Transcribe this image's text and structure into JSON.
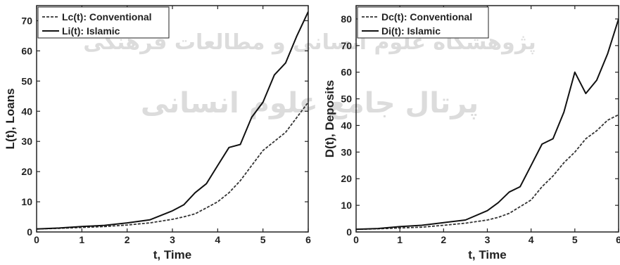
{
  "watermark": {
    "line1": "پژوهشگاه علوم انسانی و مطالعات فرهنگی",
    "line2": "پرتال جامع علوم انسانی"
  },
  "chart_data": [
    {
      "type": "line",
      "title": "",
      "xlabel": "t, Time",
      "ylabel": "L(t), Loans",
      "xlim": [
        0,
        6
      ],
      "ylim": [
        0,
        75
      ],
      "xticks": [
        0,
        1,
        2,
        3,
        4,
        5,
        6
      ],
      "yticks": [
        0,
        10,
        20,
        30,
        40,
        50,
        60,
        70
      ],
      "grid": false,
      "legend_position": "top-left",
      "x": [
        0,
        0.5,
        1,
        1.5,
        2,
        2.5,
        3,
        3.25,
        3.5,
        3.75,
        4,
        4.25,
        4.5,
        4.75,
        5,
        5.25,
        5.5,
        5.75,
        6
      ],
      "series": [
        {
          "name": "Lc(t): Conventional",
          "style": "dashed",
          "color": "#333333",
          "values": [
            1,
            1.2,
            1.5,
            1.8,
            2.3,
            3,
            4.2,
            5,
            6,
            8,
            10,
            13,
            17,
            22,
            27,
            30,
            33,
            38,
            43
          ]
        },
        {
          "name": "Li(t): Islamic",
          "style": "solid",
          "color": "#111111",
          "values": [
            1,
            1.3,
            1.8,
            2.2,
            3,
            4,
            7,
            9,
            13,
            16,
            22,
            28,
            29,
            38,
            43,
            52,
            56,
            65,
            73
          ]
        }
      ]
    },
    {
      "type": "line",
      "title": "",
      "xlabel": "t, Time",
      "ylabel": "D(t), Deposits",
      "xlim": [
        0,
        6
      ],
      "ylim": [
        0,
        85
      ],
      "xticks": [
        0,
        1,
        2,
        3,
        4,
        5,
        6
      ],
      "yticks": [
        0,
        10,
        20,
        30,
        40,
        50,
        60,
        70,
        80
      ],
      "grid": false,
      "legend_position": "top-left",
      "x": [
        0,
        0.5,
        1,
        1.5,
        2,
        2.5,
        3,
        3.25,
        3.5,
        3.75,
        4,
        4.25,
        4.5,
        4.75,
        5,
        5.25,
        5.5,
        5.75,
        6
      ],
      "series": [
        {
          "name": "Dc(t): Conventional",
          "style": "dashed",
          "color": "#333333",
          "values": [
            1,
            1.2,
            1.5,
            1.8,
            2.5,
            3.3,
            4.5,
            5.5,
            7,
            9.5,
            12,
            17,
            21,
            26,
            30,
            35,
            38,
            42,
            44
          ]
        },
        {
          "name": "Di(t): Islamic",
          "style": "solid",
          "color": "#111111",
          "values": [
            1,
            1.3,
            2,
            2.5,
            3.5,
            4.5,
            8,
            11,
            15,
            17,
            25,
            33,
            35,
            45,
            60,
            52,
            57,
            67,
            80
          ]
        }
      ]
    }
  ]
}
